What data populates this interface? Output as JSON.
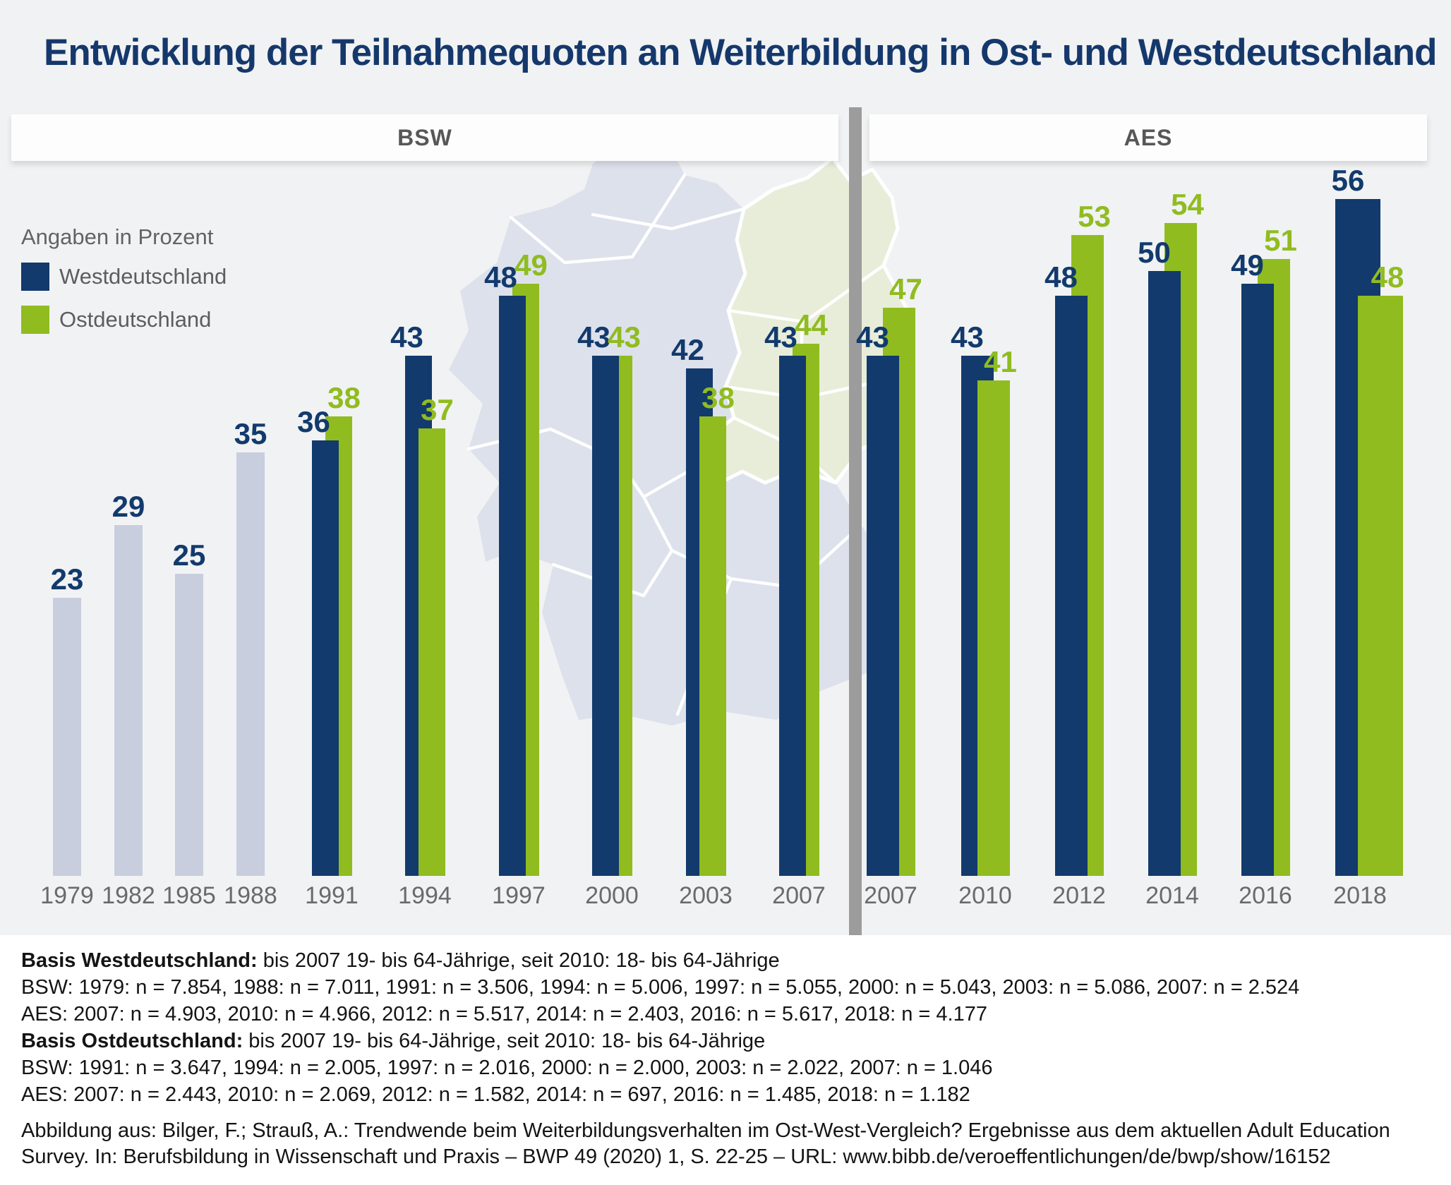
{
  "title": "Entwicklung der Teilnahmequoten an Weiterbildung in Ost- und Westdeutschland",
  "section_headers": {
    "left": "BSW",
    "right": "AES"
  },
  "legend": {
    "note": "Angaben in Prozent",
    "west_label": "Westdeutschland",
    "east_label": "Ostdeutschland"
  },
  "colors": {
    "west": "#123a6d",
    "east": "#90bc20",
    "single_bar": "#c9cede",
    "title_text": "#15386c",
    "divider": "#9c9c9c",
    "map_west": "#dde1ec",
    "map_east": "#e8edd9",
    "panel_bg": "#f1f2f3",
    "year_label": "#6a6a6a"
  },
  "chart_data": {
    "type": "bar",
    "unit": "percent",
    "title": "Entwicklung der Teilnahmequoten an Weiterbildung in Ost- und Westdeutschland",
    "ylim": [
      0,
      60
    ],
    "grid": false,
    "legend_position": "left",
    "series": [
      {
        "name": "Westdeutschland",
        "color": "#123a6d"
      },
      {
        "name": "Ostdeutschland",
        "color": "#90bc20"
      }
    ],
    "sections": [
      {
        "label": "BSW",
        "groups": [
          {
            "year": "1979",
            "west": 23,
            "east": null
          },
          {
            "year": "1982",
            "west": 29,
            "east": null
          },
          {
            "year": "1985",
            "west": 25,
            "east": null
          },
          {
            "year": "1988",
            "west": 35,
            "east": null
          },
          {
            "year": "1991",
            "west": 36,
            "east": 38
          },
          {
            "year": "1994",
            "west": 43,
            "east": 37
          },
          {
            "year": "1997",
            "west": 48,
            "east": 49
          },
          {
            "year": "2000",
            "west": 43,
            "east": 43
          },
          {
            "year": "2003",
            "west": 42,
            "east": 38
          },
          {
            "year": "2007",
            "west": 43,
            "east": 44
          }
        ]
      },
      {
        "label": "AES",
        "groups": [
          {
            "year": "2007",
            "west": 43,
            "east": 47
          },
          {
            "year": "2010",
            "west": 43,
            "east": 41
          },
          {
            "year": "2012",
            "west": 48,
            "east": 53
          },
          {
            "year": "2014",
            "west": 50,
            "east": 54
          },
          {
            "year": "2016",
            "west": 49,
            "east": 51
          },
          {
            "year": "2018",
            "west": 56,
            "east": 48
          }
        ]
      }
    ]
  },
  "footnotes": [
    {
      "bold": "Basis Westdeutschland:",
      "text": " bis 2007 19- bis 64-Jährige, seit 2010: 18- bis 64-Jährige"
    },
    {
      "bold": "",
      "text": "BSW: 1979: n = 7.854, 1988: n = 7.011, 1991: n = 3.506, 1994: n = 5.006, 1997: n = 5.055, 2000: n = 5.043, 2003: n = 5.086, 2007: n = 2.524"
    },
    {
      "bold": "",
      "text": "AES: 2007: n = 4.903, 2010: n = 4.966, 2012: n = 5.517, 2014: n = 2.403, 2016: n = 5.617, 2018: n = 4.177"
    },
    {
      "bold": "Basis Ostdeutschland:",
      "text": " bis 2007 19- bis 64-Jährige, seit 2010: 18- bis 64-Jährige"
    },
    {
      "bold": "",
      "text": "BSW: 1991: n = 3.647, 1994: n = 2.005, 1997: n = 2.016, 2000: n = 2.000, 2003: n = 2.022, 2007: n = 1.046"
    },
    {
      "bold": "",
      "text": "AES: 2007: n = 2.443, 2010: n = 2.069, 2012: n = 1.582, 2014: n = 697, 2016: n = 1.485, 2018: n = 1.182"
    }
  ],
  "source": {
    "line1": "Abbildung aus: Bilger, F.; Strauß, A.: Trendwende beim Weiterbildungsverhalten im Ost-West-Vergleich? Ergebnisse aus dem aktuellen Adult Education",
    "line2_prefix": "Survey. In: Berufsbildung in Wissenschaft und Praxis – BWP 49 (2020) 1, S. 22-25 – URL: ",
    "url": "www.bibb.de/veroeffentlichungen/de/bwp/show/16152"
  }
}
